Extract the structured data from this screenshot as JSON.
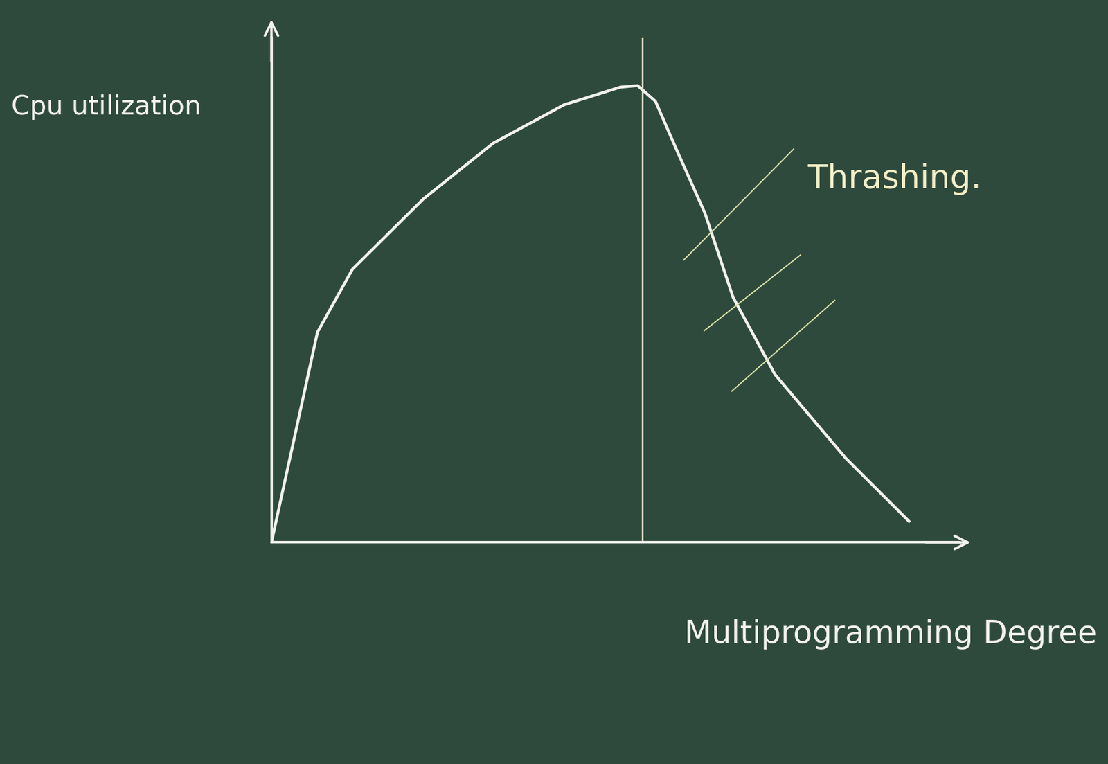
{
  "chart_data": {
    "type": "line",
    "x_label": "Multiprogramming Degree",
    "y_label": "Cpu utilization",
    "annotation": "Thrashing.",
    "x": [
      0,
      6.7,
      11.8,
      22.1,
      32.3,
      42.6,
      50.8,
      53.3,
      55.9,
      59.0,
      63.1,
      67.2,
      73.3,
      83.6,
      92.8
    ],
    "values": [
      0,
      41.7,
      54.2,
      68.1,
      79.2,
      86.8,
      90.3,
      90.6,
      87.5,
      77.8,
      65.3,
      48.6,
      33.3,
      16.7,
      4.2
    ],
    "vline_x": 54,
    "color": "#f2f2ee",
    "xlim": [
      0,
      100
    ],
    "ylim": [
      0,
      100
    ],
    "xticks": [],
    "yticks": [],
    "tick_labels": false,
    "grid": false
  }
}
